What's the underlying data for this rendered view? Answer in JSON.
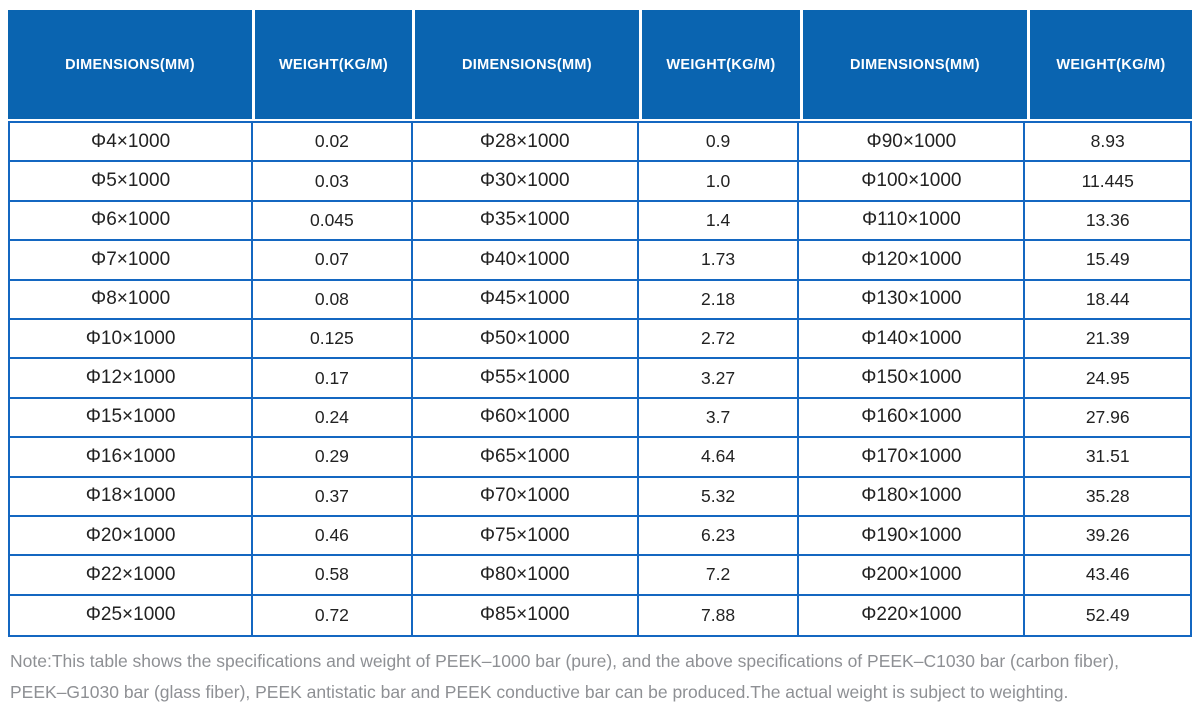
{
  "colors": {
    "header_bg": "#0A64B0",
    "grid_border": "#1467C1",
    "cell_text": "#222222",
    "header_text": "#ffffff",
    "note_text": "#8e9094",
    "page_bg": "#ffffff"
  },
  "table": {
    "columns": [
      {
        "label": "DIMENSIONS(MM)"
      },
      {
        "label": "WEIGHT(KG/M)"
      },
      {
        "label": "DIMENSIONS(MM)"
      },
      {
        "label": "WEIGHT(KG/M)"
      },
      {
        "label": "DIMENSIONS(MM)"
      },
      {
        "label": "WEIGHT(KG/M)"
      }
    ],
    "rows": [
      [
        "Φ4×1000",
        "0.02",
        "Φ28×1000",
        "0.9",
        "Φ90×1000",
        "8.93"
      ],
      [
        "Φ5×1000",
        "0.03",
        "Φ30×1000",
        "1.0",
        "Φ100×1000",
        "11.445"
      ],
      [
        "Φ6×1000",
        "0.045",
        "Φ35×1000",
        "1.4",
        "Φ110×1000",
        "13.36"
      ],
      [
        "Φ7×1000",
        "0.07",
        "Φ40×1000",
        "1.73",
        "Φ120×1000",
        "15.49"
      ],
      [
        "Φ8×1000",
        "0.08",
        "Φ45×1000",
        "2.18",
        "Φ130×1000",
        "18.44"
      ],
      [
        "Φ10×1000",
        "0.125",
        "Φ50×1000",
        "2.72",
        "Φ140×1000",
        "21.39"
      ],
      [
        "Φ12×1000",
        "0.17",
        "Φ55×1000",
        "3.27",
        "Φ150×1000",
        "24.95"
      ],
      [
        "Φ15×1000",
        "0.24",
        "Φ60×1000",
        "3.7",
        "Φ160×1000",
        "27.96"
      ],
      [
        "Φ16×1000",
        "0.29",
        "Φ65×1000",
        "4.64",
        "Φ170×1000",
        "31.51"
      ],
      [
        "Φ18×1000",
        "0.37",
        "Φ70×1000",
        "5.32",
        "Φ180×1000",
        "35.28"
      ],
      [
        "Φ20×1000",
        "0.46",
        "Φ75×1000",
        "6.23",
        "Φ190×1000",
        "39.26"
      ],
      [
        "Φ22×1000",
        "0.58",
        "Φ80×1000",
        "7.2",
        "Φ200×1000",
        "43.46"
      ],
      [
        "Φ25×1000",
        "0.72",
        "Φ85×1000",
        "7.88",
        "Φ220×1000",
        "52.49"
      ]
    ]
  },
  "note": {
    "lines": [
      "Note:This table shows the specifications and weight of PEEK–1000 bar (pure), and the above specifications of PEEK–C1030 bar (carbon fiber),",
      "PEEK–G1030 bar (glass fiber), PEEK antistatic bar and PEEK conductive bar can be produced.The actual weight is subject to weighting."
    ]
  }
}
